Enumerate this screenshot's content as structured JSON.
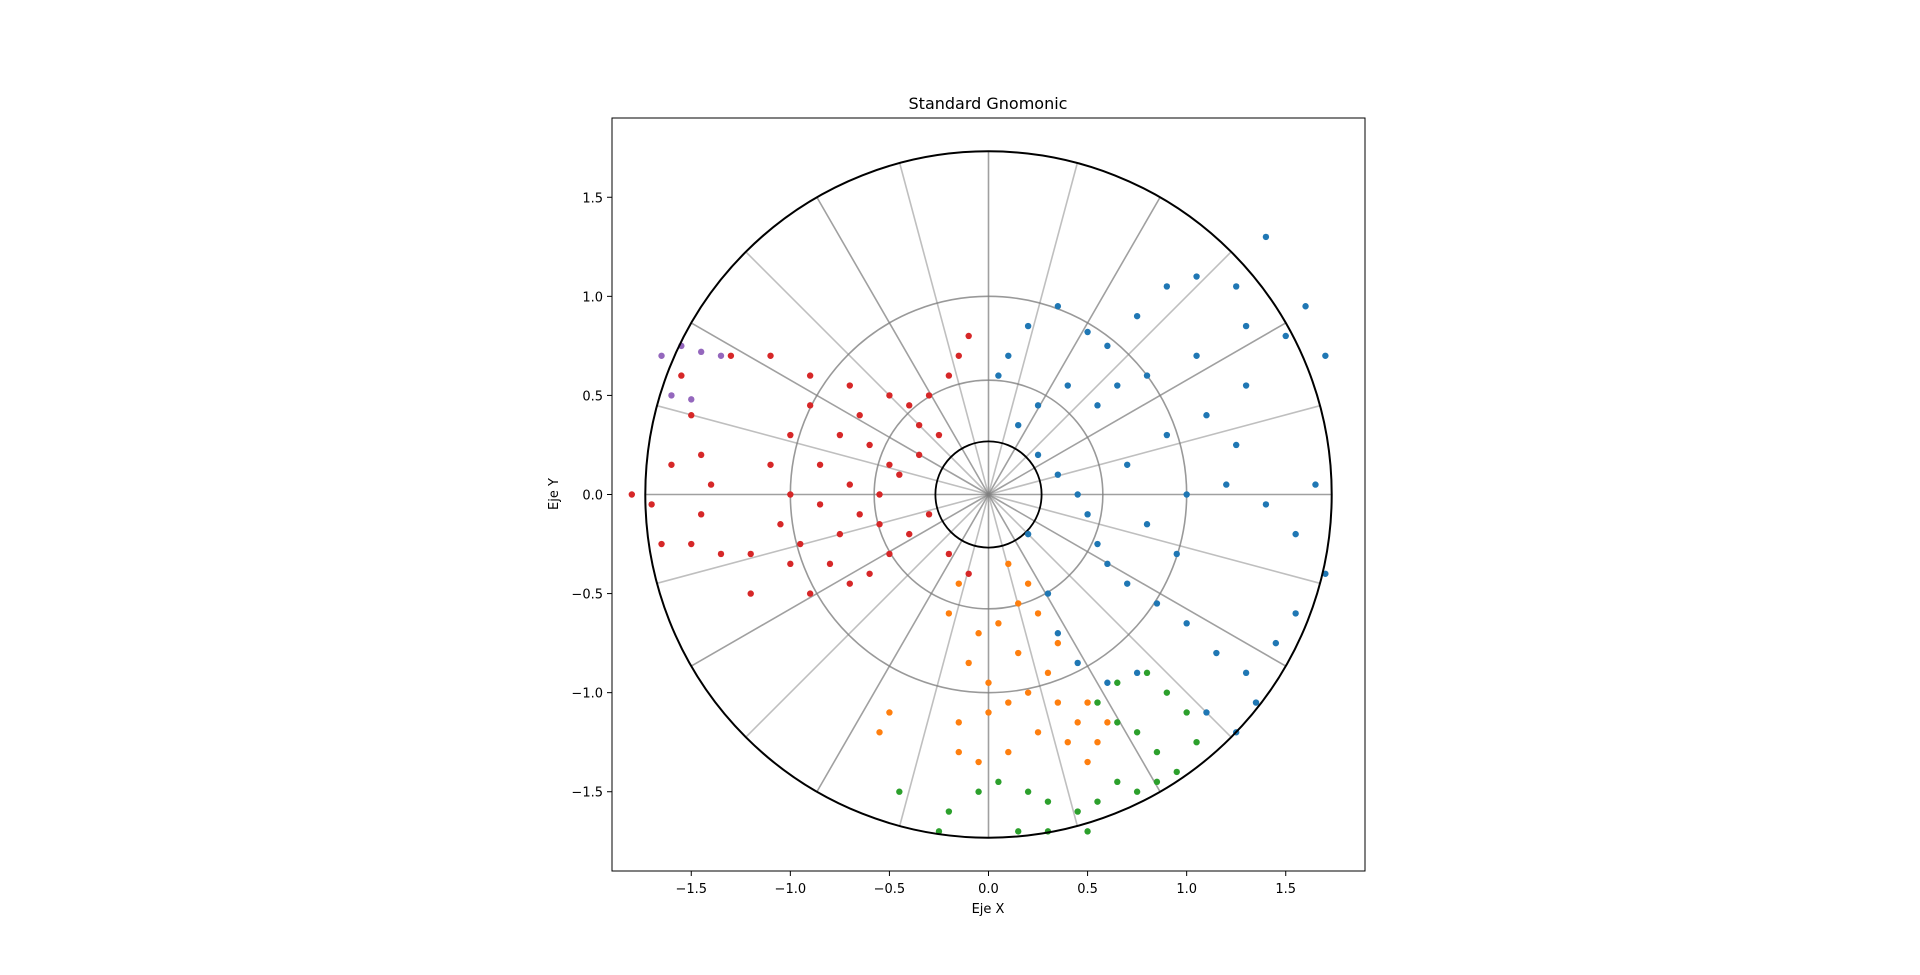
{
  "chart_data": {
    "type": "scatter",
    "title": "Standard Gnomonic",
    "xlabel": "Eje X",
    "ylabel": "Eje Y",
    "xlim": [
      -1.9,
      1.9
    ],
    "ylim": [
      -1.9,
      1.9
    ],
    "xticks": [
      -1.5,
      -1.0,
      -0.5,
      0.0,
      0.5,
      1.0,
      1.5
    ],
    "yticks": [
      -1.5,
      -1.0,
      -0.5,
      0.0,
      0.5,
      1.0,
      1.5
    ],
    "xtick_labels": [
      "−1.5",
      "−1.0",
      "−0.5",
      "0.0",
      "0.5",
      "1.0",
      "1.5"
    ],
    "ytick_labels": [
      "−1.5",
      "−1.0",
      "−0.5",
      "0.0",
      "0.5",
      "1.0",
      "1.5"
    ],
    "grid": false,
    "projection_boundary_radius": 1.732,
    "parallel_radii": [
      0.268,
      0.577,
      1.0
    ],
    "meridian_count": 24,
    "colors": {
      "series_1": "#1f77b4",
      "series_2": "#ff7f0e",
      "series_3": "#2ca02c",
      "series_4": "#d62728",
      "series_5": "#9467bd",
      "boundary": "#000000",
      "graticule": "#808080"
    },
    "series": [
      {
        "color": "#1f77b4",
        "points": [
          [
            0.05,
            0.6
          ],
          [
            0.1,
            0.7
          ],
          [
            0.2,
            0.85
          ],
          [
            0.35,
            0.95
          ],
          [
            0.5,
            0.82
          ],
          [
            0.6,
            0.75
          ],
          [
            0.75,
            0.9
          ],
          [
            0.9,
            1.05
          ],
          [
            1.05,
            1.1
          ],
          [
            1.25,
            1.05
          ],
          [
            1.4,
            1.3
          ],
          [
            1.3,
            0.85
          ],
          [
            1.5,
            0.8
          ],
          [
            1.6,
            0.95
          ],
          [
            1.7,
            0.7
          ],
          [
            0.25,
            0.2
          ],
          [
            0.35,
            0.1
          ],
          [
            0.45,
            0.0
          ],
          [
            0.5,
            -0.1
          ],
          [
            0.55,
            -0.25
          ],
          [
            0.6,
            -0.35
          ],
          [
            0.7,
            -0.45
          ],
          [
            0.85,
            -0.55
          ],
          [
            1.0,
            -0.65
          ],
          [
            1.15,
            -0.8
          ],
          [
            1.3,
            -0.9
          ],
          [
            1.45,
            -0.75
          ],
          [
            1.55,
            -0.6
          ],
          [
            1.0,
            0.0
          ],
          [
            1.2,
            0.05
          ],
          [
            1.4,
            -0.05
          ],
          [
            1.55,
            -0.2
          ],
          [
            1.65,
            0.05
          ],
          [
            0.9,
            0.3
          ],
          [
            1.1,
            0.4
          ],
          [
            1.25,
            0.25
          ],
          [
            0.7,
            0.15
          ],
          [
            0.8,
            -0.15
          ],
          [
            0.95,
            -0.3
          ],
          [
            0.3,
            -0.5
          ],
          [
            0.35,
            -0.7
          ],
          [
            0.45,
            -0.85
          ],
          [
            0.6,
            -0.95
          ],
          [
            0.75,
            -0.9
          ],
          [
            0.2,
            -0.2
          ],
          [
            0.15,
            0.35
          ],
          [
            0.25,
            0.45
          ],
          [
            0.4,
            0.55
          ],
          [
            0.55,
            0.45
          ],
          [
            0.65,
            0.55
          ],
          [
            1.1,
            -1.1
          ],
          [
            1.25,
            -1.2
          ],
          [
            1.35,
            -1.05
          ],
          [
            1.7,
            -0.4
          ],
          [
            1.05,
            0.7
          ],
          [
            1.3,
            0.55
          ],
          [
            0.8,
            0.6
          ]
        ]
      },
      {
        "color": "#ff7f0e",
        "points": [
          [
            0.1,
            -0.35
          ],
          [
            0.2,
            -0.45
          ],
          [
            0.15,
            -0.55
          ],
          [
            0.05,
            -0.65
          ],
          [
            -0.05,
            -0.7
          ],
          [
            -0.1,
            -0.85
          ],
          [
            0.0,
            -0.95
          ],
          [
            0.1,
            -1.05
          ],
          [
            0.2,
            -1.0
          ],
          [
            0.3,
            -0.9
          ],
          [
            0.35,
            -1.05
          ],
          [
            0.45,
            -1.15
          ],
          [
            0.55,
            -1.25
          ],
          [
            0.6,
            -1.15
          ],
          [
            0.5,
            -1.05
          ],
          [
            -0.15,
            -1.15
          ],
          [
            -0.15,
            -1.3
          ],
          [
            -0.05,
            -1.35
          ],
          [
            0.1,
            -1.3
          ],
          [
            0.25,
            -1.2
          ],
          [
            0.4,
            -1.25
          ],
          [
            0.5,
            -1.35
          ],
          [
            0.0,
            -1.1
          ],
          [
            0.15,
            -0.8
          ],
          [
            -0.2,
            -0.6
          ],
          [
            -0.15,
            -0.45
          ],
          [
            -0.5,
            -1.1
          ],
          [
            -0.55,
            -1.2
          ],
          [
            0.25,
            -0.6
          ],
          [
            0.35,
            -0.75
          ]
        ]
      },
      {
        "color": "#2ca02c",
        "points": [
          [
            0.55,
            -1.05
          ],
          [
            0.65,
            -0.95
          ],
          [
            0.8,
            -0.9
          ],
          [
            0.9,
            -1.0
          ],
          [
            1.0,
            -1.1
          ],
          [
            1.05,
            -1.25
          ],
          [
            0.95,
            -1.4
          ],
          [
            0.85,
            -1.45
          ],
          [
            0.75,
            -1.5
          ],
          [
            0.65,
            -1.45
          ],
          [
            0.55,
            -1.55
          ],
          [
            0.45,
            -1.6
          ],
          [
            0.3,
            -1.55
          ],
          [
            0.2,
            -1.5
          ],
          [
            0.05,
            -1.45
          ],
          [
            -0.05,
            -1.5
          ],
          [
            -0.2,
            -1.6
          ],
          [
            -0.25,
            -1.7
          ],
          [
            0.3,
            -1.7
          ],
          [
            0.5,
            -1.7
          ],
          [
            0.65,
            -1.15
          ],
          [
            0.75,
            -1.2
          ],
          [
            0.85,
            -1.3
          ],
          [
            -0.45,
            -1.5
          ],
          [
            0.15,
            -1.7
          ]
        ]
      },
      {
        "color": "#d62728",
        "points": [
          [
            -1.3,
            0.7
          ],
          [
            -1.1,
            0.7
          ],
          [
            -0.9,
            0.6
          ],
          [
            -0.7,
            0.55
          ],
          [
            -0.5,
            0.5
          ],
          [
            -0.4,
            0.45
          ],
          [
            -0.3,
            0.5
          ],
          [
            -0.2,
            0.6
          ],
          [
            -0.15,
            0.7
          ],
          [
            -0.1,
            0.8
          ],
          [
            -0.25,
            0.3
          ],
          [
            -0.35,
            0.2
          ],
          [
            -0.45,
            0.1
          ],
          [
            -0.55,
            0.0
          ],
          [
            -0.65,
            -0.1
          ],
          [
            -0.75,
            -0.2
          ],
          [
            -0.8,
            -0.35
          ],
          [
            -0.7,
            -0.45
          ],
          [
            -0.6,
            -0.4
          ],
          [
            -0.5,
            -0.3
          ],
          [
            -0.4,
            -0.2
          ],
          [
            -0.3,
            -0.1
          ],
          [
            -0.2,
            -0.3
          ],
          [
            -0.1,
            -0.4
          ],
          [
            -1.0,
            0.3
          ],
          [
            -1.1,
            0.15
          ],
          [
            -1.0,
            0.0
          ],
          [
            -1.05,
            -0.15
          ],
          [
            -1.2,
            -0.3
          ],
          [
            -1.35,
            -0.3
          ],
          [
            -1.5,
            -0.25
          ],
          [
            -1.65,
            -0.25
          ],
          [
            -1.7,
            -0.05
          ],
          [
            -1.6,
            0.15
          ],
          [
            -1.5,
            0.4
          ],
          [
            -1.55,
            0.6
          ],
          [
            -0.9,
            0.45
          ],
          [
            -0.75,
            0.3
          ],
          [
            -0.6,
            0.25
          ],
          [
            -0.5,
            0.15
          ],
          [
            -0.85,
            -0.05
          ],
          [
            -0.95,
            -0.25
          ],
          [
            -0.65,
            0.4
          ],
          [
            -0.35,
            0.35
          ],
          [
            -0.55,
            -0.15
          ],
          [
            -1.45,
            -0.1
          ],
          [
            -1.4,
            0.05
          ],
          [
            -1.8,
            0.0
          ],
          [
            -1.0,
            -0.35
          ],
          [
            -0.9,
            -0.5
          ],
          [
            -0.85,
            0.15
          ],
          [
            -0.7,
            0.05
          ],
          [
            -1.2,
            -0.5
          ],
          [
            -1.45,
            0.2
          ]
        ]
      },
      {
        "color": "#9467bd",
        "points": [
          [
            -1.55,
            0.75
          ],
          [
            -1.45,
            0.72
          ],
          [
            -1.35,
            0.7
          ],
          [
            -1.6,
            0.5
          ],
          [
            -1.5,
            0.48
          ],
          [
            -1.65,
            0.7
          ]
        ]
      }
    ]
  }
}
